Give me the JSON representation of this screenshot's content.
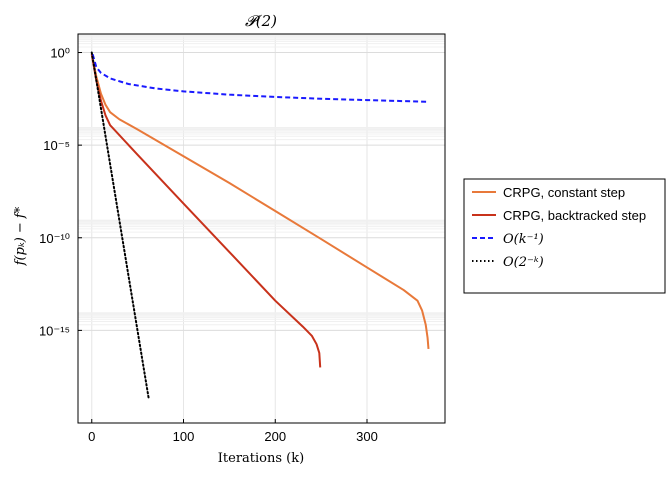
{
  "chart_data": {
    "type": "line",
    "title": "𝓟(2)",
    "xlabel": "Iterations (k)",
    "ylabel": "f(pₖ) − f*",
    "x_scale": "linear",
    "y_scale": "log",
    "xlim": [
      -15,
      385
    ],
    "ylim": [
      1e-20,
      10.0
    ],
    "xticks": [
      0,
      100,
      200,
      300
    ],
    "xtick_labels": [
      "0",
      "100",
      "200",
      "300"
    ],
    "yticks": [
      1,
      1e-05,
      1e-10,
      1e-15
    ],
    "ytick_labels": [
      "10⁰",
      "10⁻⁵",
      "10⁻¹⁰",
      "10⁻¹⁵"
    ],
    "grid": true,
    "legend_position": "right",
    "series": [
      {
        "name": "CRPG, constant step",
        "color": "#e8793a",
        "dash": "solid",
        "x": [
          0,
          5,
          10,
          15,
          20,
          30,
          50,
          100,
          150,
          200,
          250,
          300,
          340,
          355,
          360,
          364,
          366,
          367
        ],
        "y": [
          0.8,
          0.05,
          0.006,
          0.0015,
          0.0006,
          0.00025,
          7e-05,
          2.5e-06,
          9e-08,
          2.8e-09,
          8.5e-11,
          2.5e-12,
          1.5e-13,
          4e-14,
          1.2e-14,
          2e-15,
          4e-16,
          1e-16
        ]
      },
      {
        "name": "CRPG, backtracked step",
        "color": "#c8321b",
        "dash": "solid",
        "x": [
          0,
          5,
          10,
          15,
          20,
          50,
          100,
          150,
          200,
          230,
          240,
          245,
          248,
          249
        ],
        "y": [
          0.8,
          0.03,
          0.0025,
          0.0004,
          0.00012,
          3e-06,
          7e-09,
          1.7e-11,
          4e-14,
          1.6e-15,
          5e-16,
          1.8e-16,
          6e-17,
          1e-17
        ]
      },
      {
        "name": "O(k⁻¹)",
        "color": "#1a1aff",
        "dash": "dashed",
        "x": [
          1,
          5,
          10,
          20,
          40,
          70,
          100,
          150,
          200,
          250,
          300,
          365
        ],
        "y": [
          0.8,
          0.16,
          0.08,
          0.04,
          0.02,
          0.0114,
          0.008,
          0.0053,
          0.004,
          0.0032,
          0.0027,
          0.0022
        ]
      },
      {
        "name": "O(2⁻ᵏ)",
        "color": "#000000",
        "dash": "dotted",
        "x": [
          0,
          10,
          20,
          30,
          40,
          50,
          62
        ],
        "y": [
          1,
          0.000977,
          9.5e-07,
          9.3e-10,
          9.1e-13,
          8.9e-16,
          2.2e-19
        ]
      }
    ]
  },
  "legend": {
    "items": [
      {
        "label": "CRPG, constant step"
      },
      {
        "label": "CRPG, backtracked step"
      },
      {
        "label": "O(k⁻¹)"
      },
      {
        "label": "O(2⁻ᵏ)"
      }
    ]
  }
}
